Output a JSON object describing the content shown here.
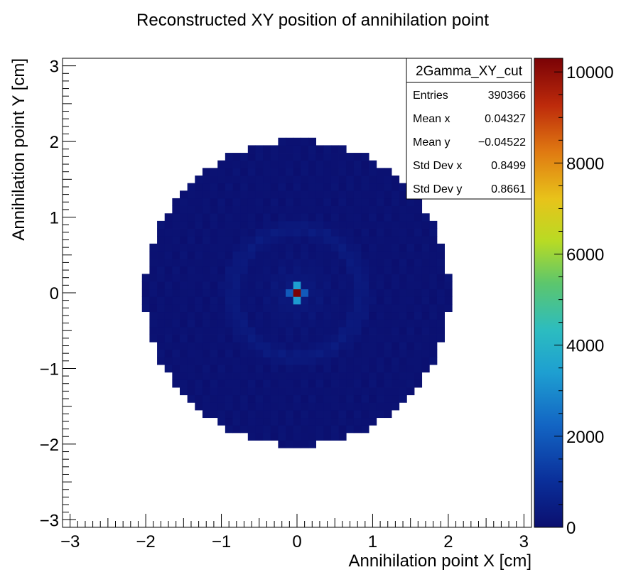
{
  "chart_data": {
    "type": "heatmap",
    "title": "Reconstructed XY position of annihilation point",
    "xlabel": "Annihilation point X [cm]",
    "ylabel": "Annihilation point Y [cm]",
    "xlim": [
      -3.1,
      3.1
    ],
    "ylim": [
      -3.1,
      3.1
    ],
    "bin_width": 0.1,
    "x_ticks": [
      -3,
      -2,
      -1,
      0,
      1,
      2,
      3
    ],
    "y_ticks": [
      -3,
      -2,
      -1,
      0,
      1,
      2,
      3
    ],
    "x_tick_labels": [
      "−3",
      "−2",
      "−1",
      "0",
      "1",
      "2",
      "3"
    ],
    "y_tick_labels": [
      "−3",
      "−2",
      "−1",
      "0",
      "1",
      "2",
      "3"
    ],
    "z_range": [
      0,
      10300
    ],
    "z_ticks": [
      0,
      2000,
      4000,
      6000,
      8000,
      10000
    ],
    "z_tick_labels": [
      "0",
      "2000",
      "4000",
      "6000",
      "8000",
      "10000"
    ],
    "palette": "kBird-like (dark blue to dark red)",
    "grid": false,
    "legend": "top-right statistics box",
    "distribution": {
      "shape": "uniform disk with bright centre and faint ring",
      "disk_radius_cm": 2.0,
      "background_counts": 80,
      "centre_peak_counts": 10300,
      "peak_bin": [
        0.0,
        0.0
      ],
      "neighbour_bins": [
        {
          "x": 0.0,
          "y": 0.1,
          "value": 3400
        },
        {
          "x": 0.0,
          "y": -0.1,
          "value": 3300
        },
        {
          "x": 0.1,
          "y": 0.0,
          "value": 2000
        },
        {
          "x": -0.1,
          "y": 0.0,
          "value": 2000
        }
      ],
      "ring_radius_cm": 0.85,
      "ring_counts": 900
    }
  },
  "stats_box": {
    "name": "2Gamma_XY_cut",
    "rows": [
      {
        "label": "Entries",
        "value": "390366"
      },
      {
        "label": "Mean x",
        "value": "0.04327"
      },
      {
        "label": "Mean y",
        "value": "−0.04522"
      },
      {
        "label": "Std Dev x",
        "value": "0.8499"
      },
      {
        "label": "Std Dev y",
        "value": "0.8661"
      }
    ]
  }
}
